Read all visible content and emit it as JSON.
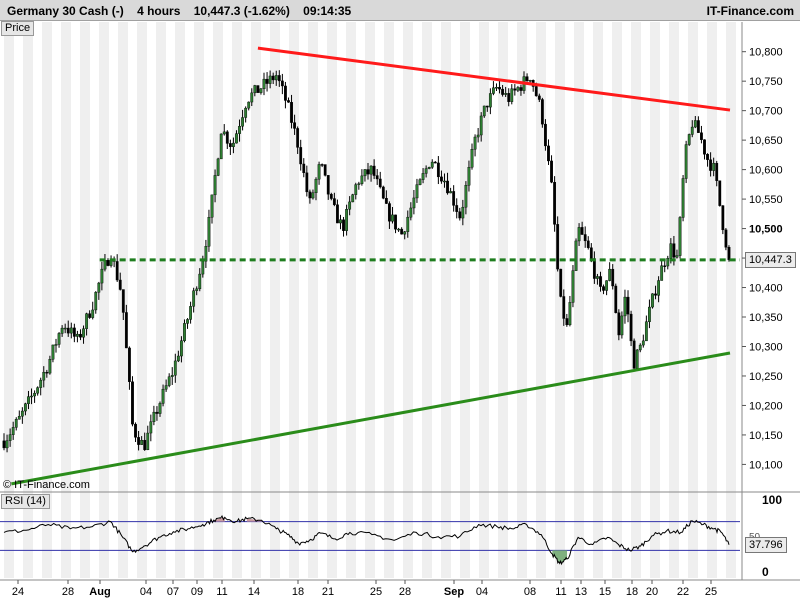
{
  "header": {
    "instrument": "Germany 30 Cash (-)",
    "timeframe": "4 hours",
    "quote": "10,447.3 (-1.62%)",
    "time": "09:14:35",
    "brand": "IT-Finance.com"
  },
  "panes": {
    "price_label": "Price",
    "rsi_label": "RSI (14)",
    "copyright": "© IT-Finance.com"
  },
  "colors": {
    "up_candle": "#2e7d32",
    "down_candle": "#000000",
    "resistance": "#ff1a1a",
    "support": "#2a8c1a",
    "horizontal_level": "#1f7d1f",
    "rsi_line": "#000000",
    "rsi_band": "#3333aa",
    "rsi_overbought_fill": "#c99aa0",
    "rsi_oversold_fill": "#7fb07f",
    "stripe": "#efefef"
  },
  "chart_data": {
    "type": "candlestick",
    "instrument": "Germany 30 Cash",
    "y_axis": {
      "range": [
        10060,
        10830
      ],
      "ticks": [
        10100,
        10150,
        10200,
        10250,
        10300,
        10350,
        10400,
        10450,
        10500,
        10550,
        10600,
        10650,
        10700,
        10750,
        10800
      ],
      "tick_labels": [
        "10,100",
        "10,150",
        "10,200",
        "10,250",
        "10,300",
        "10,350",
        "10,400",
        "10,450",
        "10,500",
        "10,550",
        "10,600",
        "10,650",
        "10,700",
        "10,750",
        "10,800"
      ],
      "bold_tick": "10,500"
    },
    "x_axis": {
      "labels": [
        "24",
        "28",
        "Aug",
        "04",
        "07",
        "09",
        "11",
        "14",
        "18",
        "21",
        "25",
        "28",
        "Sep",
        "04",
        "08",
        "11",
        "13",
        "15",
        "18",
        "20",
        "22",
        "25"
      ],
      "bold_labels": [
        "Aug",
        "Sep"
      ]
    },
    "last_price": 10447.3,
    "last_price_label": "10,447.3",
    "trendlines": [
      {
        "name": "resistance",
        "from": {
          "bar": 0.0,
          "price": 10806
        },
        "to": {
          "bar": 1.0,
          "price": 10701
        },
        "style": "solid"
      },
      {
        "name": "support",
        "from": {
          "bar": 0.0,
          "price": 10067
        },
        "to": {
          "bar": 1.0,
          "price": 10289
        },
        "style": "solid"
      },
      {
        "name": "level",
        "price": 10447,
        "style": "dashed"
      }
    ],
    "close_path": [
      [
        0.0,
        10140
      ],
      [
        0.02,
        10175
      ],
      [
        0.04,
        10220
      ],
      [
        0.06,
        10270
      ],
      [
        0.08,
        10340
      ],
      [
        0.1,
        10310
      ],
      [
        0.12,
        10370
      ],
      [
        0.135,
        10430
      ],
      [
        0.145,
        10460
      ],
      [
        0.16,
        10390
      ],
      [
        0.175,
        10160
      ],
      [
        0.19,
        10130
      ],
      [
        0.21,
        10200
      ],
      [
        0.23,
        10260
      ],
      [
        0.25,
        10350
      ],
      [
        0.27,
        10450
      ],
      [
        0.28,
        10520
      ],
      [
        0.295,
        10670
      ],
      [
        0.31,
        10640
      ],
      [
        0.33,
        10720
      ],
      [
        0.35,
        10740
      ],
      [
        0.37,
        10760
      ],
      [
        0.385,
        10710
      ],
      [
        0.4,
        10640
      ],
      [
        0.415,
        10540
      ],
      [
        0.43,
        10610
      ],
      [
        0.445,
        10540
      ],
      [
        0.46,
        10500
      ],
      [
        0.48,
        10580
      ],
      [
        0.5,
        10600
      ],
      [
        0.52,
        10530
      ],
      [
        0.54,
        10490
      ],
      [
        0.56,
        10560
      ],
      [
        0.58,
        10620
      ],
      [
        0.6,
        10580
      ],
      [
        0.62,
        10520
      ],
      [
        0.64,
        10650
      ],
      [
        0.655,
        10710
      ],
      [
        0.67,
        10740
      ],
      [
        0.685,
        10720
      ],
      [
        0.7,
        10740
      ],
      [
        0.715,
        10760
      ],
      [
        0.73,
        10700
      ],
      [
        0.745,
        10560
      ],
      [
        0.755,
        10380
      ],
      [
        0.765,
        10330
      ],
      [
        0.78,
        10500
      ],
      [
        0.795,
        10460
      ],
      [
        0.81,
        10390
      ],
      [
        0.825,
        10430
      ],
      [
        0.835,
        10320
      ],
      [
        0.845,
        10390
      ],
      [
        0.855,
        10270
      ],
      [
        0.865,
        10300
      ],
      [
        0.875,
        10350
      ],
      [
        0.89,
        10420
      ],
      [
        0.905,
        10470
      ],
      [
        0.915,
        10450
      ],
      [
        0.925,
        10620
      ],
      [
        0.935,
        10680
      ],
      [
        0.945,
        10660
      ],
      [
        0.955,
        10620
      ],
      [
        0.965,
        10600
      ],
      [
        0.975,
        10520
      ],
      [
        0.985,
        10447.3
      ]
    ],
    "rsi": {
      "name": "RSI (14)",
      "range": [
        0,
        100
      ],
      "ticks": [
        0,
        50,
        100
      ],
      "bands": [
        70,
        30
      ],
      "last": 37.796,
      "last_label": "37.796",
      "values": [
        [
          0.0,
          55
        ],
        [
          0.03,
          58
        ],
        [
          0.06,
          66
        ],
        [
          0.09,
          60
        ],
        [
          0.12,
          63
        ],
        [
          0.145,
          70
        ],
        [
          0.16,
          50
        ],
        [
          0.175,
          28
        ],
        [
          0.19,
          36
        ],
        [
          0.21,
          48
        ],
        [
          0.23,
          56
        ],
        [
          0.25,
          60
        ],
        [
          0.27,
          66
        ],
        [
          0.285,
          72
        ],
        [
          0.3,
          76
        ],
        [
          0.315,
          70
        ],
        [
          0.33,
          74
        ],
        [
          0.35,
          72
        ],
        [
          0.37,
          60
        ],
        [
          0.385,
          52
        ],
        [
          0.4,
          40
        ],
        [
          0.415,
          44
        ],
        [
          0.43,
          54
        ],
        [
          0.45,
          46
        ],
        [
          0.47,
          55
        ],
        [
          0.5,
          52
        ],
        [
          0.53,
          44
        ],
        [
          0.56,
          55
        ],
        [
          0.59,
          49
        ],
        [
          0.62,
          50
        ],
        [
          0.645,
          66
        ],
        [
          0.67,
          63
        ],
        [
          0.69,
          60
        ],
        [
          0.71,
          66
        ],
        [
          0.73,
          52
        ],
        [
          0.745,
          25
        ],
        [
          0.755,
          12
        ],
        [
          0.765,
          18
        ],
        [
          0.78,
          48
        ],
        [
          0.8,
          38
        ],
        [
          0.82,
          48
        ],
        [
          0.835,
          38
        ],
        [
          0.85,
          30
        ],
        [
          0.865,
          36
        ],
        [
          0.88,
          50
        ],
        [
          0.9,
          57
        ],
        [
          0.92,
          55
        ],
        [
          0.935,
          71
        ],
        [
          0.95,
          66
        ],
        [
          0.965,
          60
        ],
        [
          0.975,
          55
        ],
        [
          0.985,
          37.8
        ]
      ]
    }
  }
}
